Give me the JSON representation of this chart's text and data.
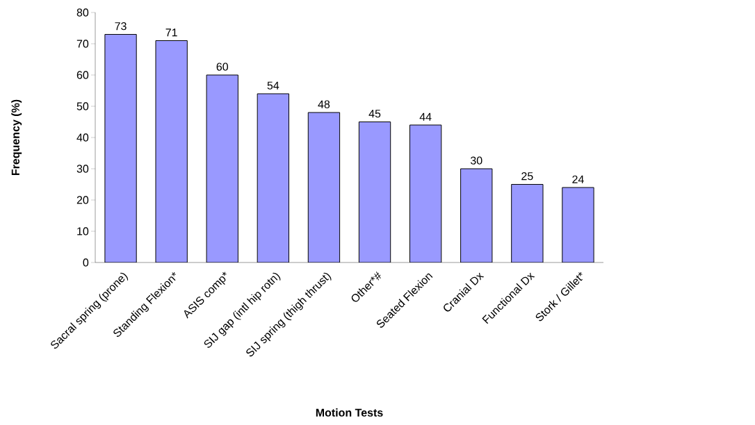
{
  "chart_data": {
    "type": "bar",
    "xlabel": "Motion Tests",
    "ylabel": "Frequency (%)",
    "categories": [
      "Sacral spring (prone)",
      "Standing Flexion*",
      "ASIS comp*",
      "SIJ gap (intl hip rotn)",
      "SIJ spring (thigh thrust)",
      "Other*#",
      "Seated Flexion",
      "Cranial Dx",
      "Functional Dx",
      "Stork / Gillet*"
    ],
    "values": [
      73,
      71,
      60,
      54,
      48,
      45,
      44,
      30,
      25,
      24
    ],
    "color": "#9999ff",
    "ylim": [
      0,
      80
    ],
    "yticks": [
      0,
      10,
      20,
      30,
      40,
      50,
      60,
      70,
      80
    ],
    "data_labels": true,
    "grid": false
  }
}
